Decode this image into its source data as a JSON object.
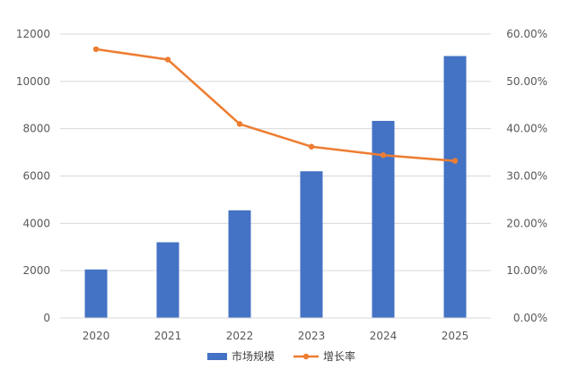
{
  "chart_data": {
    "type": "bar",
    "categories": [
      "2020",
      "2021",
      "2022",
      "2023",
      "2024",
      "2025"
    ],
    "series": [
      {
        "name": "市场规模",
        "type": "bar",
        "axis": "left",
        "color": "#4472C4",
        "values": [
          2050,
          3200,
          4550,
          6200,
          8330,
          11070
        ]
      },
      {
        "name": "增长率",
        "type": "line",
        "axis": "right",
        "color": "#ED7D31",
        "values": [
          56.8,
          54.6,
          41.0,
          36.2,
          34.4,
          33.2
        ]
      }
    ],
    "y_left": {
      "ylim": [
        0,
        12000
      ],
      "ticks": [
        0,
        2000,
        4000,
        6000,
        8000,
        10000,
        12000
      ],
      "tick_labels": [
        "0",
        "2000",
        "4000",
        "6000",
        "8000",
        "10000",
        "12000"
      ]
    },
    "y_right": {
      "ylim": [
        0,
        60
      ],
      "ticks": [
        0,
        10,
        20,
        30,
        40,
        50,
        60
      ],
      "tick_labels": [
        "0.00%",
        "10.00%",
        "20.00%",
        "30.00%",
        "40.00%",
        "50.00%",
        "60.00%"
      ]
    },
    "grid": true,
    "legend": "bottom",
    "title": "",
    "xlabel": "",
    "ylabel": ""
  }
}
